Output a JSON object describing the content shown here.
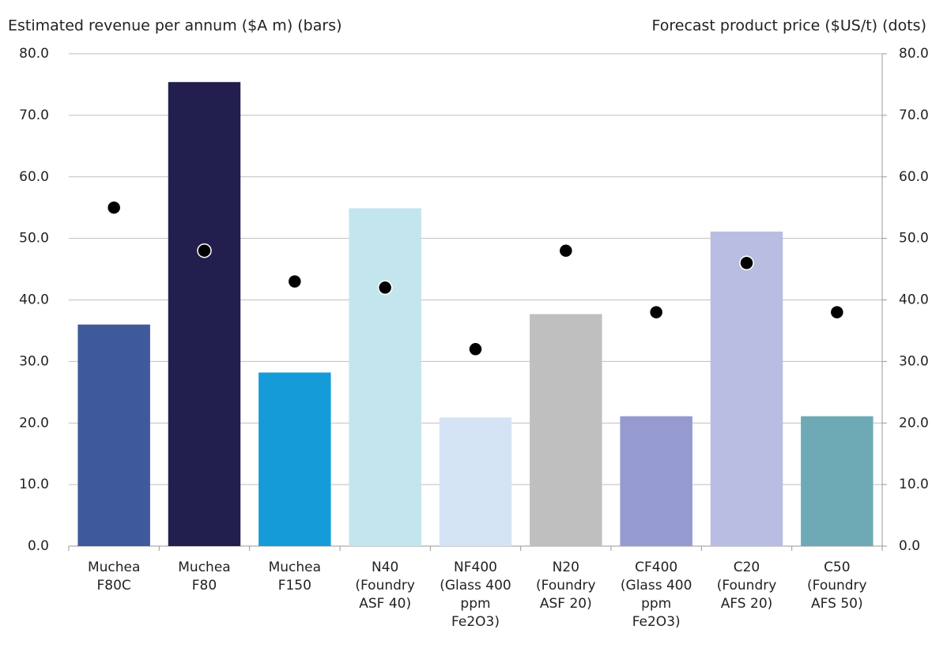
{
  "chart_data": {
    "type": "bar_dot",
    "y_axis_title": "Estimated revenue per annum ($A m) (bars)",
    "y2_axis_title": "Forecast product price ($US/t) (dots)",
    "categories": [
      [
        "Muchea",
        "F80C"
      ],
      [
        "Muchea",
        "F80"
      ],
      [
        "Muchea",
        "F150"
      ],
      [
        "N40",
        "(Foundry",
        "ASF 40)"
      ],
      [
        "NF400",
        "(Glass 400",
        "ppm",
        "Fe2O3)"
      ],
      [
        "N20",
        "(Foundry",
        "ASF 20)"
      ],
      [
        "CF400",
        "(Glass 400",
        "ppm",
        "Fe2O3)"
      ],
      [
        "C20",
        "(Foundry",
        "AFS 20)"
      ],
      [
        "C50",
        "(Foundry",
        "AFS 50)"
      ]
    ],
    "series": [
      {
        "type": "bar",
        "values": [
          36.0,
          75.4,
          28.2,
          54.9,
          20.9,
          37.7,
          21.1,
          51.1,
          21.1
        ],
        "colors": [
          "#3f5a9a",
          "#221f4f",
          "#169bd9",
          "#c3e6ee",
          "#d4e4f5",
          "#bfbfbf",
          "#959acf",
          "#b9bde2",
          "#6eaab5"
        ]
      },
      {
        "type": "dot",
        "axis": "y2",
        "color": "#000000",
        "values": [
          55,
          48,
          43,
          42,
          32,
          48,
          38,
          46,
          38
        ]
      }
    ],
    "ylim": [
      0,
      80
    ],
    "yticks": [
      {
        "value": 0,
        "label": "0.0"
      },
      {
        "value": 10,
        "label": "10.0"
      },
      {
        "value": 20,
        "label": "20.0"
      },
      {
        "value": 30,
        "label": "30.0"
      },
      {
        "value": 40,
        "label": "40.0"
      },
      {
        "value": 50,
        "label": "50.0"
      },
      {
        "value": 60,
        "label": "60.0"
      },
      {
        "value": 70,
        "label": "70.0"
      },
      {
        "value": 80,
        "label": "80.0"
      }
    ],
    "y2lim": [
      0,
      80
    ],
    "y2ticks": [
      {
        "value": 0,
        "label": "0.0"
      },
      {
        "value": 10,
        "label": "10.0"
      },
      {
        "value": 20,
        "label": "20.0"
      },
      {
        "value": 30,
        "label": "30.0"
      },
      {
        "value": 40,
        "label": "40.0"
      },
      {
        "value": 50,
        "label": "50.0"
      },
      {
        "value": 60,
        "label": "60.0"
      },
      {
        "value": 70,
        "label": "70.0"
      },
      {
        "value": 80,
        "label": "80.0"
      }
    ],
    "grid": true
  }
}
